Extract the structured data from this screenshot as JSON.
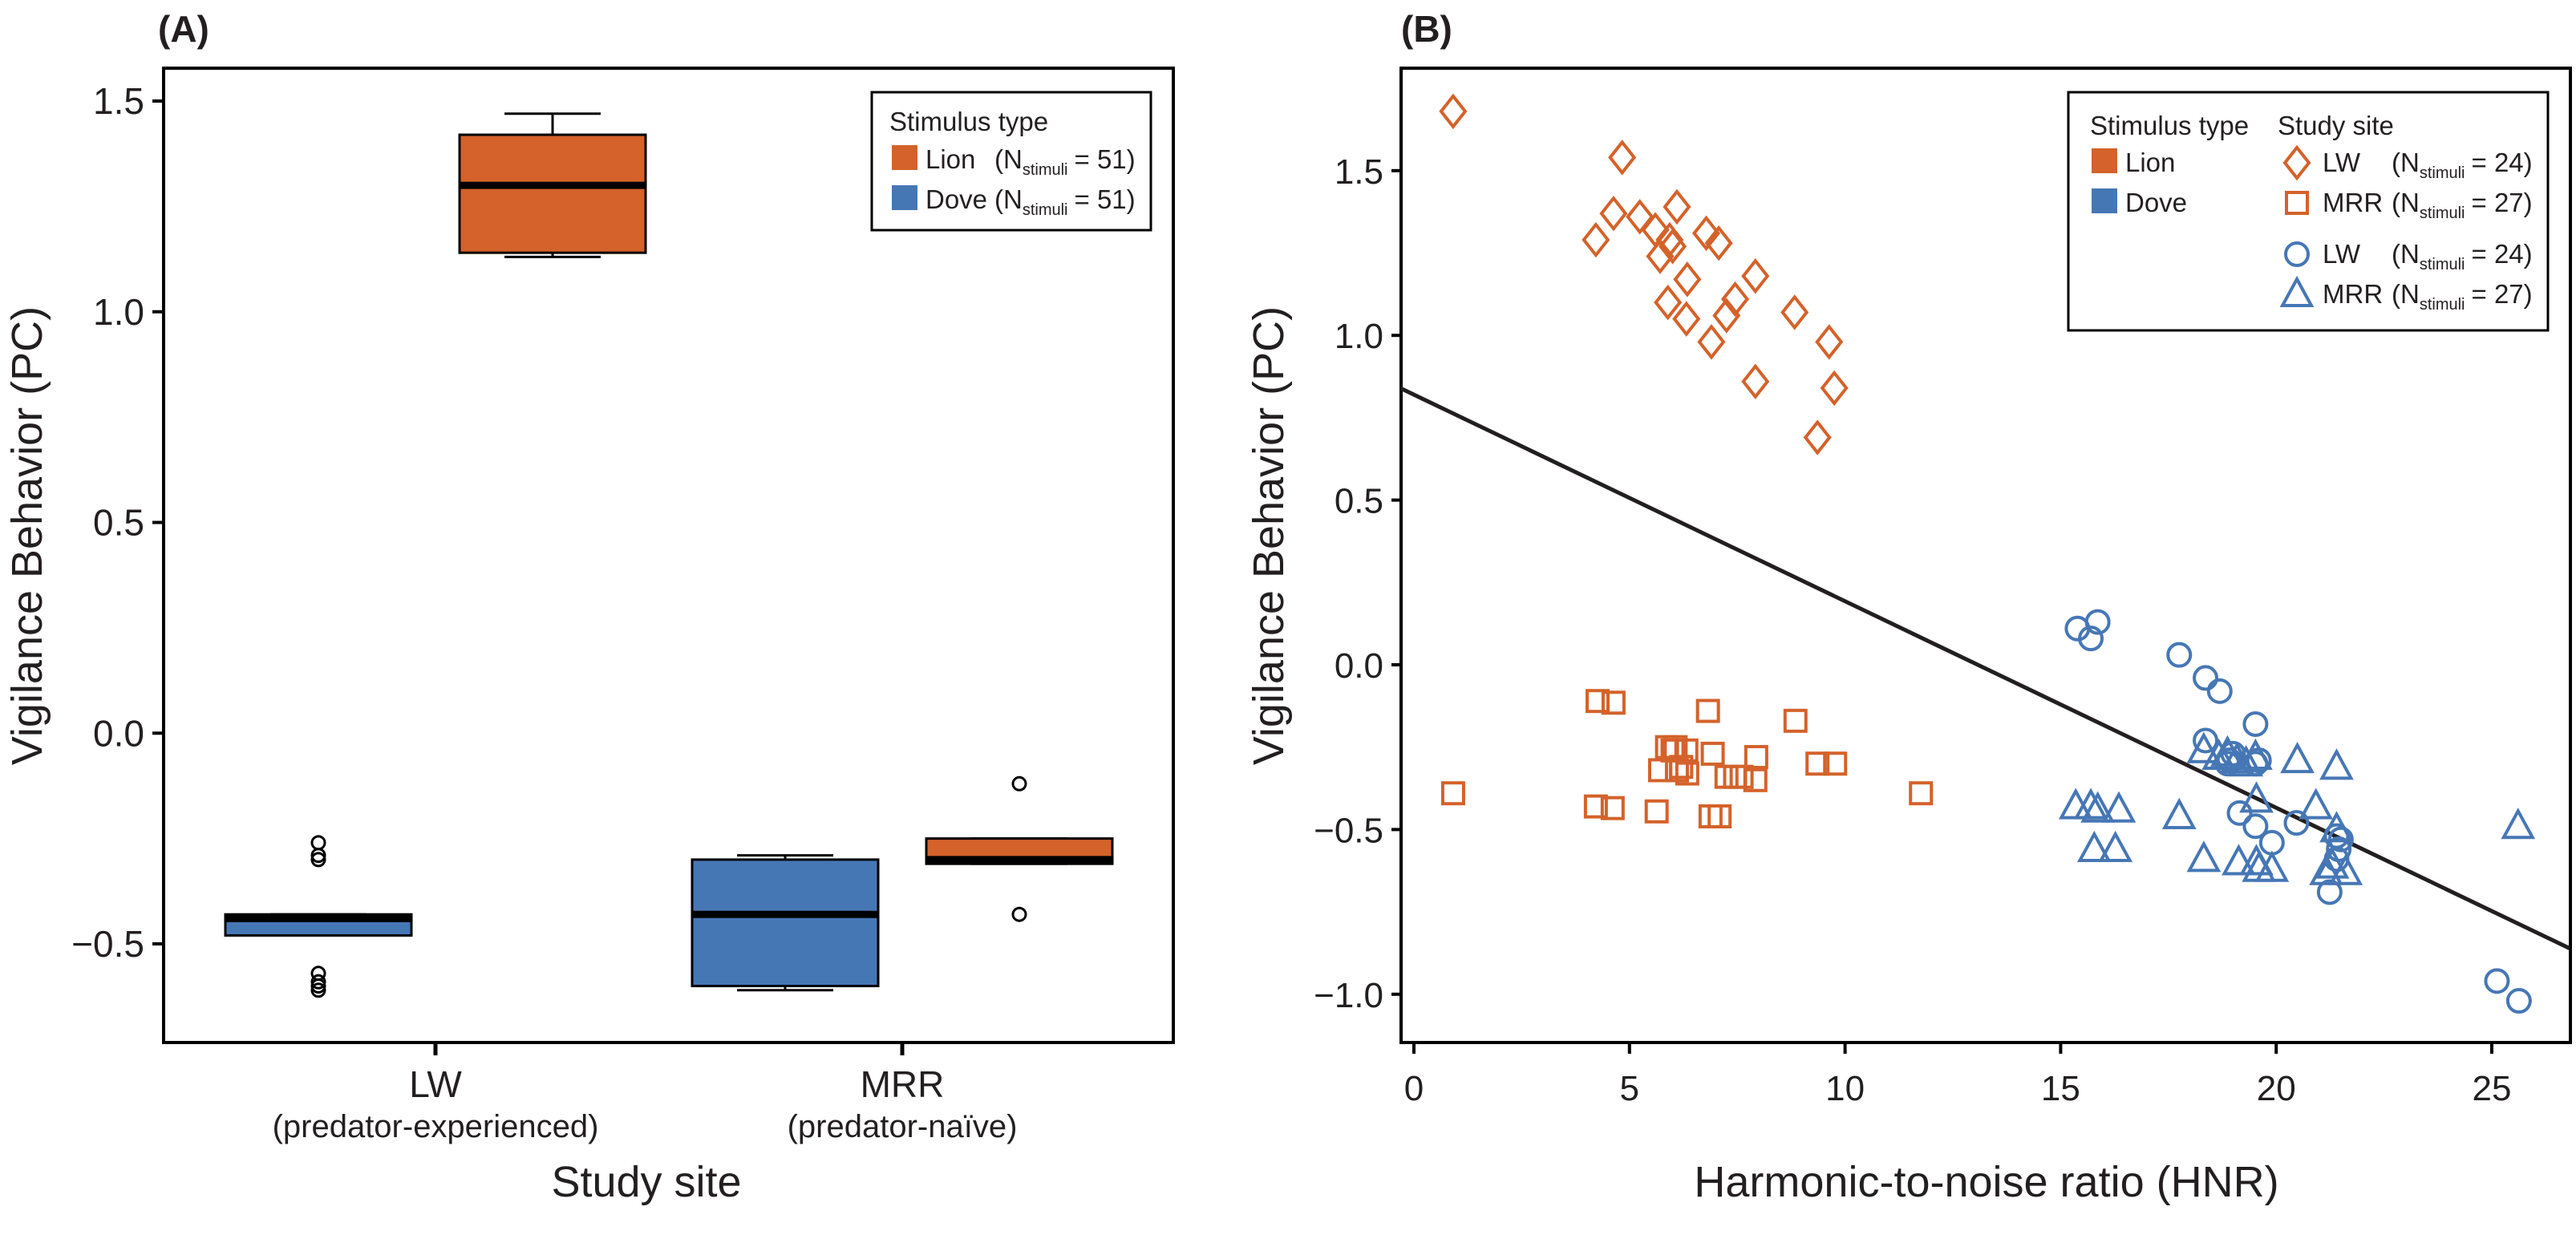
{
  "colors": {
    "lion": "#d4622a",
    "dove": "#4677b5",
    "axis": "#231f20"
  },
  "chart_data": [
    {
      "type": "box",
      "panel_label": "(A)",
      "xlabel": "Study site",
      "ylabel": "Vigilance Behavior (PC)",
      "ylim": [
        -0.73,
        1.58
      ],
      "yticks": [
        1.5,
        1.0,
        0.5,
        0.0,
        -0.5
      ],
      "ytick_labels": [
        "1.5",
        "1.0",
        "0.5",
        "0.0",
        "−0.5"
      ],
      "categories": [
        {
          "name": "LW",
          "subtitle": "(predator-experienced)"
        },
        {
          "name": "MRR",
          "subtitle": "(predator-naïve)"
        }
      ],
      "boxes": [
        {
          "category": "LW",
          "stimulus": "Dove",
          "min": -0.48,
          "q1": -0.48,
          "median": -0.44,
          "q3": -0.43,
          "max": -0.43,
          "outliers": [
            -0.26,
            -0.29,
            -0.3,
            -0.57,
            -0.59,
            -0.6,
            -0.61
          ]
        },
        {
          "category": "LW",
          "stimulus": "Lion",
          "min": 1.13,
          "q1": 1.14,
          "median": 1.3,
          "q3": 1.42,
          "max": 1.47,
          "outliers": []
        },
        {
          "category": "MRR",
          "stimulus": "Dove",
          "min": -0.61,
          "q1": -0.6,
          "median": -0.43,
          "q3": -0.3,
          "max": -0.29,
          "outliers": []
        },
        {
          "category": "MRR",
          "stimulus": "Lion",
          "min": -0.31,
          "q1": -0.31,
          "median": -0.3,
          "q3": -0.25,
          "max": -0.25,
          "outliers": [
            -0.12,
            -0.43
          ]
        }
      ],
      "legend": {
        "title": "Stimulus type",
        "position": "top-right",
        "entries": [
          {
            "label": "Lion",
            "n_open": "(N",
            "n_sub": "stimuli",
            "n_close": "= 51)",
            "color": "lion"
          },
          {
            "label": "Dove",
            "n_open": "(N",
            "n_sub": "stimuli",
            "n_close": "= 51)",
            "color": "dove"
          }
        ]
      }
    },
    {
      "type": "scatter",
      "panel_label": "(B)",
      "xlabel": "Harmonic-to-noise ratio (HNR)",
      "ylabel": "Vigilance Behavior (PC)",
      "xlim": [
        -0.3,
        26.8
      ],
      "ylim": [
        -1.17,
        1.81
      ],
      "xticks": [
        0,
        5,
        10,
        15,
        20,
        25
      ],
      "xtick_labels": [
        "0",
        "5",
        "10",
        "15",
        "20",
        "25"
      ],
      "yticks": [
        1.5,
        1.0,
        0.5,
        0.0,
        -0.5,
        -1.0
      ],
      "ytick_labels": [
        "1.5",
        "1.0",
        "0.5",
        "0.0",
        "−0.5",
        "−1.0"
      ],
      "regression_line": {
        "intercept": 0.82,
        "slope": -0.0627
      },
      "series": [
        {
          "stimulus": "Lion",
          "site": "LW",
          "marker": "diamond",
          "color": "lion",
          "points": [
            [
              0.91,
              1.68
            ],
            [
              4.83,
              1.54
            ],
            [
              4.22,
              1.29
            ],
            [
              4.63,
              1.37
            ],
            [
              5.24,
              1.36
            ],
            [
              5.6,
              1.32
            ],
            [
              5.93,
              1.29
            ],
            [
              5.71,
              1.24
            ],
            [
              6.1,
              1.39
            ],
            [
              6.34,
              1.17
            ],
            [
              5.89,
              1.1
            ],
            [
              6.32,
              1.05
            ],
            [
              6.78,
              1.31
            ],
            [
              7.07,
              1.28
            ],
            [
              7.45,
              1.11
            ],
            [
              7.25,
              1.06
            ],
            [
              6.9,
              0.98
            ],
            [
              7.92,
              1.18
            ],
            [
              7.92,
              0.86
            ],
            [
              8.83,
              1.07
            ],
            [
              9.63,
              0.98
            ],
            [
              9.75,
              0.84
            ],
            [
              9.36,
              0.69
            ],
            [
              6.0,
              1.27
            ]
          ]
        },
        {
          "stimulus": "Lion",
          "site": "MRR",
          "marker": "square",
          "color": "lion",
          "points": [
            [
              0.91,
              -0.39
            ],
            [
              4.26,
              -0.11
            ],
            [
              4.63,
              -0.115
            ],
            [
              4.22,
              -0.43
            ],
            [
              4.61,
              -0.435
            ],
            [
              5.63,
              -0.445
            ],
            [
              5.71,
              -0.32
            ],
            [
              5.87,
              -0.25
            ],
            [
              6.07,
              -0.25
            ],
            [
              6.32,
              -0.26
            ],
            [
              6.1,
              -0.32
            ],
            [
              6.34,
              -0.33
            ],
            [
              6.82,
              -0.14
            ],
            [
              6.93,
              -0.27
            ],
            [
              6.88,
              -0.46
            ],
            [
              7.09,
              -0.46
            ],
            [
              7.25,
              -0.34
            ],
            [
              7.45,
              -0.34
            ],
            [
              7.94,
              -0.28
            ],
            [
              7.92,
              -0.35
            ],
            [
              8.85,
              -0.17
            ],
            [
              9.36,
              -0.3
            ],
            [
              9.77,
              -0.3
            ],
            [
              11.76,
              -0.39
            ],
            [
              6.0,
              -0.26
            ],
            [
              6.2,
              -0.31
            ],
            [
              7.6,
              -0.34
            ]
          ]
        },
        {
          "stimulus": "Dove",
          "site": "LW",
          "marker": "circle",
          "color": "dove",
          "points": [
            [
              15.39,
              0.11
            ],
            [
              15.86,
              0.13
            ],
            [
              15.7,
              0.08
            ],
            [
              17.75,
              0.03
            ],
            [
              18.36,
              -0.04
            ],
            [
              18.69,
              -0.08
            ],
            [
              19.52,
              -0.18
            ],
            [
              18.36,
              -0.23
            ],
            [
              18.87,
              -0.3
            ],
            [
              19.52,
              -0.3
            ],
            [
              18.91,
              -0.29
            ],
            [
              19.6,
              -0.29
            ],
            [
              19.15,
              -0.45
            ],
            [
              19.52,
              -0.49
            ],
            [
              19.9,
              -0.54
            ],
            [
              20.47,
              -0.48
            ],
            [
              21.4,
              -0.52
            ],
            [
              21.5,
              -0.53
            ],
            [
              21.4,
              -0.59
            ],
            [
              21.24,
              -0.69
            ],
            [
              25.12,
              -0.96
            ],
            [
              25.63,
              -1.02
            ],
            [
              19.0,
              -0.27
            ],
            [
              21.45,
              -0.56
            ]
          ]
        },
        {
          "stimulus": "Dove",
          "site": "MRR",
          "marker": "triangle",
          "color": "dove",
          "points": [
            [
              15.35,
              -0.43
            ],
            [
              15.7,
              -0.43
            ],
            [
              15.86,
              -0.44
            ],
            [
              16.35,
              -0.44
            ],
            [
              15.78,
              -0.56
            ],
            [
              16.27,
              -0.56
            ],
            [
              17.75,
              -0.46
            ],
            [
              18.32,
              -0.59
            ],
            [
              18.32,
              -0.26
            ],
            [
              18.67,
              -0.28
            ],
            [
              18.87,
              -0.27
            ],
            [
              19.09,
              -0.29
            ],
            [
              19.52,
              -0.28
            ],
            [
              19.54,
              -0.41
            ],
            [
              19.13,
              -0.6
            ],
            [
              19.54,
              -0.6
            ],
            [
              19.9,
              -0.62
            ],
            [
              20.49,
              -0.29
            ],
            [
              21.4,
              -0.31
            ],
            [
              20.92,
              -0.43
            ],
            [
              21.4,
              -0.5
            ],
            [
              21.16,
              -0.63
            ],
            [
              21.61,
              -0.63
            ],
            [
              25.61,
              -0.49
            ],
            [
              19.3,
              -0.3
            ],
            [
              19.6,
              -0.62
            ],
            [
              21.3,
              -0.61
            ]
          ]
        }
      ],
      "legend": {
        "position": "top-right",
        "stimulus_title": "Stimulus type",
        "site_title": "Study site",
        "stimulus_entries": [
          {
            "label": "Lion",
            "color": "lion"
          },
          {
            "label": "Dove",
            "color": "dove"
          }
        ],
        "site_entries": [
          {
            "label": "LW",
            "marker": "diamond",
            "color": "lion",
            "n_open": "(N",
            "n_sub": "stimuli",
            "n_close": "= 24)"
          },
          {
            "label": "MRR",
            "marker": "square",
            "color": "lion",
            "n_open": "(N",
            "n_sub": "stimuli",
            "n_close": "= 27)"
          },
          {
            "label": "LW",
            "marker": "circle",
            "color": "dove",
            "n_open": "(N",
            "n_sub": "stimuli",
            "n_close": "= 24)"
          },
          {
            "label": "MRR",
            "marker": "triangle",
            "color": "dove",
            "n_open": "(N",
            "n_sub": "stimuli",
            "n_close": "= 27)"
          }
        ]
      }
    }
  ]
}
